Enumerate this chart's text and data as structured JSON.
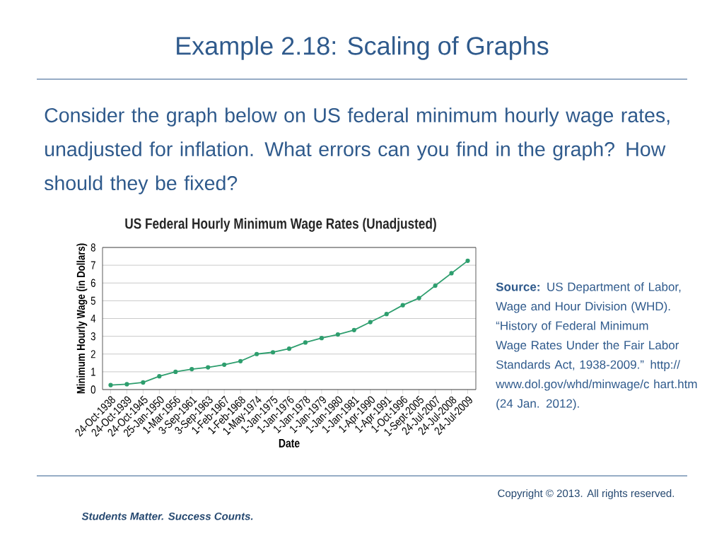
{
  "chart_data": {
    "type": "line",
    "title": "Example 2.18: Scaling of Graphs",
    "subtitle": "Consider the graph below on US federal minimum hourly wage rates, unadjusted for inflation. What errors can you find in the graph? How should they be fixed?",
    "annotations": [
      "US Federal Hourly Minimum Wage Rates (Unadjusted)",
      "**Source:** US Department of Labor, Wage and Hour Division (WHD). “History of Federal Minimum Wage Rates Under the Fair Labor Standards Act, 1938-2009.” http:// www.dol.gov/whd/minwage/c hart.htm (24 Jan. 2012).",
      "Students Matter. Success Counts.",
      "Copyright © 2013. All rights reserved."
    ],
    "xlabel": "Date",
    "ylabel": "Minimum Hourly Wage (in Dollars)",
    "categories": [
      "24-Oct-1938",
      "24-Oct-1939",
      "24-Oct-1945",
      "25-Jan-1950",
      "1-Mar-1956",
      "3-Sep-1961",
      "3-Sep-1963",
      "1-Feb-1967",
      "1-Feb-1968",
      "1-May-1974",
      "1-Jan-1975",
      "1-Jan-1976",
      "1-Jan-1978",
      "1-Jan-1979",
      "1-Jan-1980",
      "1-Jan-1981",
      "1-Apr-1990",
      "1-Apr-1991",
      "1-Oct-1996",
      "1-Sept-2005",
      "24-Jul-2007",
      "24-Jul-2008",
      "24-Jul-2009"
    ],
    "values": [
      0.25,
      0.3,
      0.4,
      0.75,
      1.0,
      1.15,
      1.25,
      1.4,
      1.6,
      2.0,
      2.1,
      2.3,
      2.65,
      2.9,
      3.1,
      3.35,
      3.8,
      4.25,
      4.75,
      5.15,
      5.85,
      6.55,
      7.25
    ],
    "color": "#2e9e6e",
    "marker": "circle",
    "line_style": "solid",
    "grid": "y",
    "ylim": [
      0,
      8
    ],
    "yticks": [
      0,
      1,
      2,
      3,
      4,
      5,
      6,
      7,
      8
    ]
  }
}
